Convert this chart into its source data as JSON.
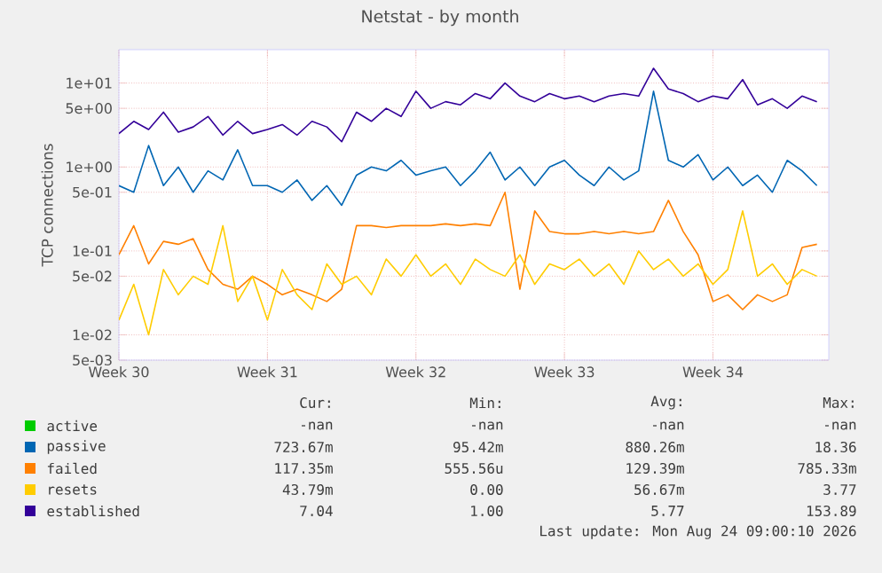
{
  "chart_data": {
    "type": "line",
    "title": "Netstat - by month",
    "ylabel": "TCP connections",
    "log": "y",
    "grid": true,
    "legend": "bottom",
    "categories": [
      "Week 30",
      null,
      null,
      null,
      null,
      null,
      null,
      null,
      null,
      null,
      "Week 31",
      null,
      null,
      null,
      null,
      null,
      null,
      null,
      null,
      null,
      "Week 32",
      null,
      null,
      null,
      null,
      null,
      null,
      null,
      null,
      null,
      "Week 33",
      null,
      null,
      null,
      null,
      null,
      null,
      null,
      null,
      null,
      "Week 34",
      null,
      null,
      null,
      null,
      null,
      null,
      null
    ],
    "ylim": [
      0.005,
      25
    ],
    "yticks": [
      {
        "value": 0.005,
        "label": "5e-03"
      },
      {
        "value": 0.01,
        "label": "1e-02"
      },
      {
        "value": 0.05,
        "label": "5e-02"
      },
      {
        "value": 0.1,
        "label": "1e-01"
      },
      {
        "value": 0.5,
        "label": "5e-01"
      },
      {
        "value": 1,
        "label": "1e+00"
      },
      {
        "value": 5,
        "label": "5e+00"
      },
      {
        "value": 10,
        "label": "1e+01"
      }
    ],
    "series": [
      {
        "name": "active",
        "color": "#00cc00",
        "values": [
          null,
          null,
          null,
          null,
          null,
          null,
          null,
          null,
          null,
          null,
          null,
          null,
          null,
          null,
          null,
          null,
          null,
          null,
          null,
          null,
          null,
          null,
          null,
          null,
          null,
          null,
          null,
          null,
          null,
          null,
          null,
          null,
          null,
          null,
          null,
          null,
          null,
          null,
          null,
          null,
          null,
          null,
          null,
          null,
          null,
          null,
          null,
          null
        ]
      },
      {
        "name": "passive",
        "color": "#0066b3",
        "values": [
          0.6,
          0.5,
          1.8,
          0.6,
          1.0,
          0.5,
          0.9,
          0.7,
          1.6,
          0.6,
          0.6,
          0.5,
          0.7,
          0.4,
          0.6,
          0.35,
          0.8,
          1.0,
          0.9,
          1.2,
          0.8,
          0.9,
          1.0,
          0.6,
          0.9,
          1.5,
          0.7,
          1.0,
          0.6,
          1.0,
          1.2,
          0.8,
          0.6,
          1.0,
          0.7,
          0.9,
          8.0,
          1.2,
          1.0,
          1.4,
          0.7,
          1.0,
          0.6,
          0.8,
          0.5,
          1.2,
          0.9,
          0.6
        ]
      },
      {
        "name": "failed",
        "color": "#ff8000",
        "values": [
          0.09,
          0.2,
          0.07,
          0.13,
          0.12,
          0.14,
          0.06,
          0.04,
          0.035,
          0.05,
          0.04,
          0.03,
          0.035,
          0.03,
          0.025,
          0.035,
          0.2,
          0.2,
          0.19,
          0.2,
          0.2,
          0.2,
          0.21,
          0.2,
          0.21,
          0.2,
          0.5,
          0.035,
          0.3,
          0.17,
          0.16,
          0.16,
          0.17,
          0.16,
          0.17,
          0.16,
          0.17,
          0.4,
          0.17,
          0.09,
          0.025,
          0.03,
          0.02,
          0.03,
          0.025,
          0.03,
          0.11,
          0.12
        ]
      },
      {
        "name": "resets",
        "color": "#ffcc00",
        "values": [
          0.015,
          0.04,
          0.01,
          0.06,
          0.03,
          0.05,
          0.04,
          0.2,
          0.025,
          0.05,
          0.015,
          0.06,
          0.03,
          0.02,
          0.07,
          0.04,
          0.05,
          0.03,
          0.08,
          0.05,
          0.09,
          0.05,
          0.07,
          0.04,
          0.08,
          0.06,
          0.05,
          0.09,
          0.04,
          0.07,
          0.06,
          0.08,
          0.05,
          0.07,
          0.04,
          0.1,
          0.06,
          0.08,
          0.05,
          0.07,
          0.04,
          0.06,
          0.3,
          0.05,
          0.07,
          0.04,
          0.06,
          0.05
        ]
      },
      {
        "name": "established",
        "color": "#330099",
        "values": [
          2.5,
          3.5,
          2.8,
          4.5,
          2.6,
          3.0,
          4.0,
          2.4,
          3.5,
          2.5,
          2.8,
          3.2,
          2.4,
          3.5,
          3.0,
          2.0,
          4.5,
          3.5,
          5.0,
          4.0,
          8.0,
          5.0,
          6.0,
          5.5,
          7.5,
          6.5,
          10,
          7.0,
          6.0,
          7.5,
          6.5,
          7.0,
          6.0,
          7.0,
          7.5,
          7.0,
          15,
          8.5,
          7.5,
          6.0,
          7.0,
          6.5,
          11,
          5.5,
          6.5,
          5.0,
          7.0,
          6.0
        ]
      }
    ],
    "annotations": [
      "Cur:",
      "Min:",
      "Avg:",
      "Max:",
      "-nan",
      "-nan",
      "-nan",
      "-nan",
      "723.67m",
      "95.42m",
      "880.26m",
      "18.36",
      "117.35m",
      "555.56u",
      "129.39m",
      "785.33m",
      "43.79m",
      "0.00",
      "56.67m",
      "3.77",
      "7.04",
      "1.00",
      "5.77",
      "153.89",
      "Last update: Mon Aug 24 09:00:10 2026"
    ]
  }
}
